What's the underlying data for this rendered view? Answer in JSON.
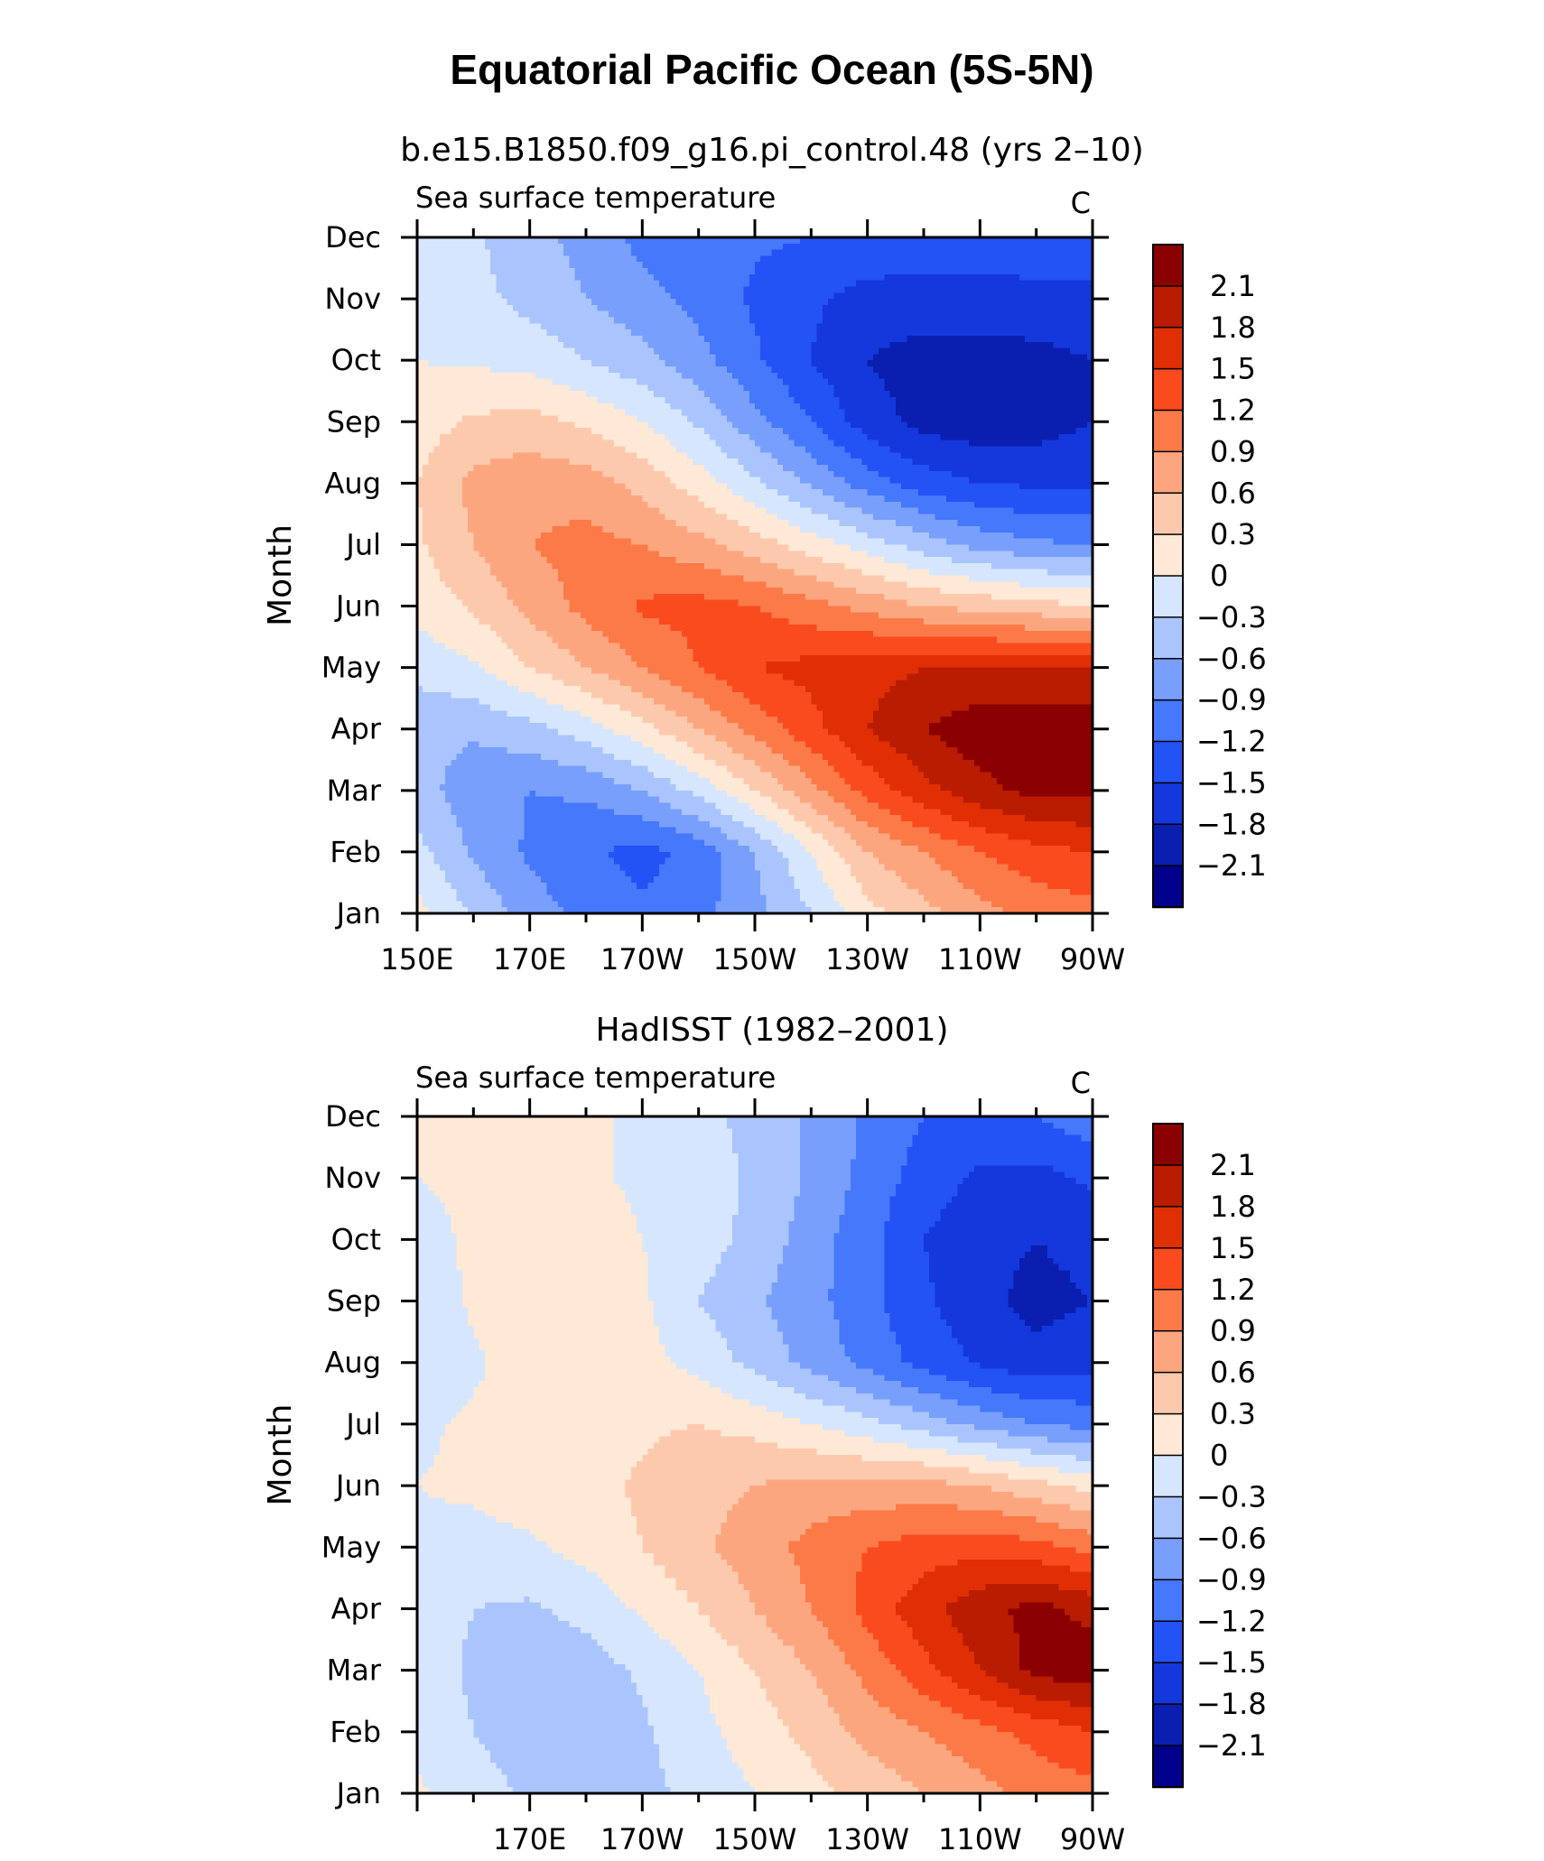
{
  "title": "Equatorial Pacific Ocean (5S-5N)",
  "palette": {
    "levels": [
      -2.1,
      -1.8,
      -1.5,
      -1.2,
      -0.9,
      -0.6,
      -0.3,
      0,
      0.3,
      0.6,
      0.9,
      1.2,
      1.5,
      1.8,
      2.1
    ],
    "colors": [
      "#00008a",
      "#0a1fb0",
      "#1438dc",
      "#2352f5",
      "#4578fa",
      "#789ffc",
      "#aac5fd",
      "#d6e6fe",
      "#fee8d6",
      "#fdc9ad",
      "#fca680",
      "#fb7a48",
      "#fa4b1e",
      "#e02f05",
      "#b91c00",
      "#8b0000"
    ]
  },
  "chart_data": [
    {
      "type": "heatmap",
      "subtitle": "b.e15.B1850.f09_g16.pi_control.48 (yrs 2–10)",
      "left_label": "Sea surface temperature",
      "units": "C",
      "ylabel": "Month",
      "x": [
        150,
        160,
        170,
        180,
        190,
        200,
        210,
        220,
        230,
        240,
        250,
        260,
        270
      ],
      "x_range": [
        150,
        270
      ],
      "xtick_values": [
        150,
        170,
        190,
        210,
        230,
        250,
        270
      ],
      "xtick_labels": [
        "150E",
        "170E",
        "170W",
        "150W",
        "130W",
        "110W",
        "90W"
      ],
      "y_labels": [
        "Jan",
        "Feb",
        "Mar",
        "Apr",
        "May",
        "Jun",
        "Jul",
        "Aug",
        "Sep",
        "Oct",
        "Nov",
        "Dec"
      ],
      "colorbar_labels": [
        "2.1",
        "1.8",
        "1.5",
        "1.2",
        "0.9",
        "0.6",
        "0.3",
        "0",
        "−0.3",
        "−0.6",
        "−0.9",
        "−1.2",
        "−1.5",
        "−1.8",
        "−2.1"
      ],
      "values": [
        [
          0.1,
          -0.35,
          -0.75,
          -1.0,
          -1.15,
          -1.0,
          -0.7,
          -0.3,
          0.2,
          0.5,
          0.8,
          1.0,
          1.1
        ],
        [
          -0.2,
          -0.65,
          -0.95,
          -1.15,
          -1.3,
          -1.1,
          -0.6,
          0.0,
          0.6,
          0.9,
          1.2,
          1.4,
          1.5
        ],
        [
          -0.45,
          -0.8,
          -0.9,
          -0.85,
          -0.6,
          -0.2,
          0.3,
          0.8,
          1.3,
          1.7,
          2.0,
          2.2,
          2.2
        ],
        [
          -0.5,
          -0.55,
          -0.4,
          -0.15,
          0.2,
          0.6,
          1.0,
          1.4,
          1.8,
          2.1,
          2.3,
          2.3,
          2.3
        ],
        [
          -0.2,
          -0.05,
          0.3,
          0.6,
          0.9,
          1.2,
          1.5,
          1.6,
          1.7,
          1.8,
          1.8,
          1.8,
          1.8
        ],
        [
          0.1,
          0.35,
          0.7,
          1.0,
          1.25,
          1.3,
          1.2,
          1.0,
          0.8,
          0.6,
          0.5,
          0.4,
          0.3
        ],
        [
          0.25,
          0.6,
          0.9,
          1.0,
          0.9,
          0.7,
          0.45,
          0.15,
          -0.15,
          -0.45,
          -0.7,
          -0.85,
          -0.9
        ],
        [
          0.3,
          0.7,
          0.8,
          0.75,
          0.5,
          0.15,
          -0.25,
          -0.65,
          -1.05,
          -1.35,
          -1.5,
          -1.55,
          -1.55
        ],
        [
          0.15,
          0.35,
          0.4,
          0.25,
          0.0,
          -0.35,
          -0.8,
          -1.2,
          -1.65,
          -1.9,
          -2.0,
          -1.95,
          -1.8
        ],
        [
          0.0,
          -0.05,
          -0.1,
          -0.3,
          -0.5,
          -0.8,
          -1.15,
          -1.5,
          -1.8,
          -1.95,
          -1.95,
          -1.9,
          -1.8
        ],
        [
          -0.1,
          -0.2,
          -0.4,
          -0.6,
          -0.8,
          -1.0,
          -1.25,
          -1.45,
          -1.6,
          -1.6,
          -1.6,
          -1.6,
          -1.6
        ],
        [
          -0.05,
          -0.25,
          -0.5,
          -0.7,
          -1.0,
          -1.1,
          -1.15,
          -1.2,
          -1.3,
          -1.35,
          -1.35,
          -1.3,
          -1.25
        ]
      ]
    },
    {
      "type": "heatmap",
      "subtitle": "HadISST (1982–2001)",
      "left_label": "Sea surface temperature",
      "units": "C",
      "ylabel": "Month",
      "x": [
        150,
        160,
        170,
        180,
        190,
        200,
        210,
        220,
        230,
        240,
        250,
        260,
        270
      ],
      "x_range": [
        150,
        270
      ],
      "xtick_values": [
        170,
        190,
        210,
        230,
        250,
        270
      ],
      "xtick_labels": [
        "170E",
        "170W",
        "150W",
        "130W",
        "110W",
        "90W"
      ],
      "y_labels": [
        "Jan",
        "Feb",
        "Mar",
        "Apr",
        "May",
        "Jun",
        "Jul",
        "Aug",
        "Sep",
        "Oct",
        "Nov",
        "Dec"
      ],
      "colorbar_labels": [
        "2.1",
        "1.8",
        "1.5",
        "1.2",
        "0.9",
        "0.6",
        "0.3",
        "0",
        "−0.3",
        "−0.6",
        "−0.9",
        "−1.2",
        "−1.5",
        "−1.8",
        "−2.1"
      ],
      "values": [
        [
          0.05,
          -0.15,
          -0.35,
          -0.45,
          -0.4,
          -0.2,
          0.0,
          0.2,
          0.4,
          0.6,
          0.8,
          1.0,
          1.1
        ],
        [
          -0.1,
          -0.3,
          -0.5,
          -0.5,
          -0.35,
          -0.1,
          0.15,
          0.4,
          0.7,
          0.9,
          1.1,
          1.3,
          1.5
        ],
        [
          -0.15,
          -0.35,
          -0.5,
          -0.45,
          -0.25,
          0.0,
          0.3,
          0.6,
          1.0,
          1.4,
          1.8,
          2.2,
          2.3
        ],
        [
          -0.15,
          -0.3,
          -0.35,
          -0.2,
          0.05,
          0.3,
          0.6,
          0.9,
          1.3,
          1.7,
          2.0,
          2.2,
          2.0
        ],
        [
          -0.05,
          -0.1,
          -0.05,
          0.1,
          0.3,
          0.55,
          0.75,
          1.0,
          1.2,
          1.35,
          1.4,
          1.3,
          1.1
        ],
        [
          0.0,
          0.05,
          0.15,
          0.2,
          0.35,
          0.5,
          0.6,
          0.7,
          0.7,
          0.7,
          0.6,
          0.4,
          0.2
        ],
        [
          -0.05,
          0.05,
          0.1,
          0.1,
          0.25,
          0.3,
          0.2,
          0.0,
          -0.2,
          -0.45,
          -0.7,
          -0.9,
          -1.0
        ],
        [
          -0.2,
          -0.05,
          0.15,
          0.2,
          0.1,
          -0.1,
          -0.4,
          -0.7,
          -1.0,
          -1.3,
          -1.55,
          -1.7,
          -1.6
        ],
        [
          -0.2,
          0.05,
          0.25,
          0.3,
          0.05,
          -0.3,
          -0.55,
          -0.8,
          -1.1,
          -1.45,
          -1.7,
          -1.9,
          -1.8
        ],
        [
          -0.1,
          0.05,
          0.15,
          0.15,
          0.0,
          -0.15,
          -0.4,
          -0.75,
          -1.1,
          -1.5,
          -1.7,
          -1.8,
          -1.7
        ],
        [
          0.0,
          0.05,
          0.1,
          0.05,
          -0.05,
          -0.15,
          -0.35,
          -0.65,
          -1.0,
          -1.35,
          -1.55,
          -1.6,
          -1.45
        ],
        [
          0.05,
          0.1,
          0.1,
          0.05,
          -0.05,
          -0.2,
          -0.4,
          -0.65,
          -0.95,
          -1.2,
          -1.3,
          -1.2,
          -1.0
        ]
      ]
    }
  ]
}
